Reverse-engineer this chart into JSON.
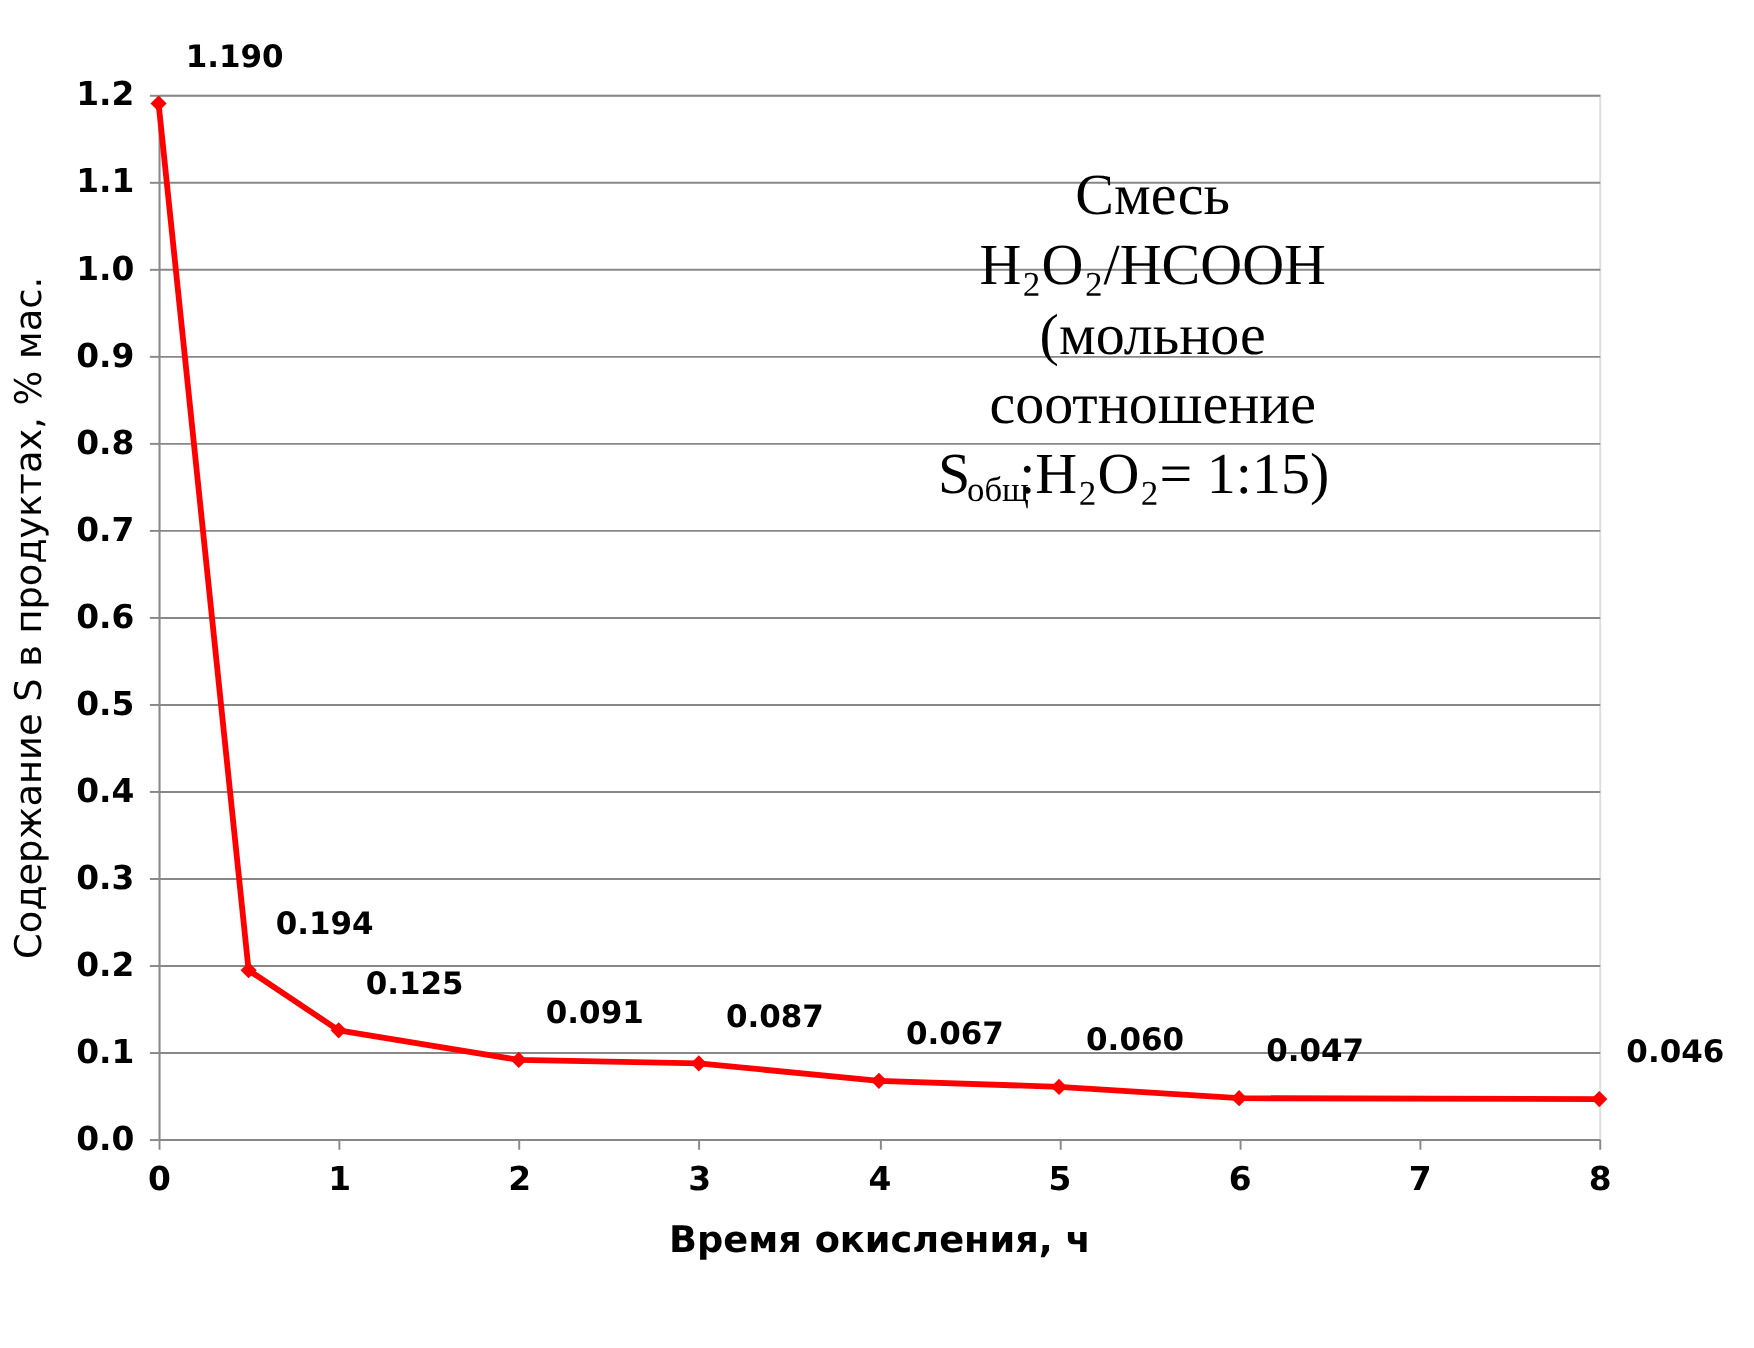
{
  "chart_data": {
    "type": "line",
    "xlabel": "Время окисления, ч",
    "ylabel": "Содержание S в продуктах, % мас.",
    "x": [
      0,
      0.5,
      1,
      2,
      3,
      4,
      5,
      6,
      8
    ],
    "series": [
      {
        "color": "#ff0000",
        "values": [
          1.19,
          0.194,
          0.125,
          0.091,
          0.087,
          0.067,
          0.06,
          0.047,
          0.046
        ],
        "value_labels": [
          "1.190",
          "0.194",
          "0.125",
          "0.091",
          "0.087",
          "0.067",
          "0.060",
          "0.047",
          "0.046"
        ]
      }
    ],
    "xlim": [
      0,
      8
    ],
    "xticks": [
      0,
      1,
      2,
      3,
      4,
      5,
      6,
      7,
      8
    ],
    "ylim": [
      0,
      1.2
    ],
    "yticks": [
      {
        "value": 0,
        "label": "0.0"
      },
      0.1,
      0.2,
      0.3,
      0.4,
      0.5,
      0.6,
      0.7,
      0.8,
      0.9,
      {
        "value": 1,
        "label": "1.0"
      },
      1.1,
      1.2
    ],
    "grid": "y",
    "marker": "diamond",
    "line_style": "solid",
    "annotations": [
      "Смесь\nH₂O₂/HCOOH\n(мольное\nсоотношение\nS$_{общ}$:H₂O₂= 1:15)"
    ]
  }
}
